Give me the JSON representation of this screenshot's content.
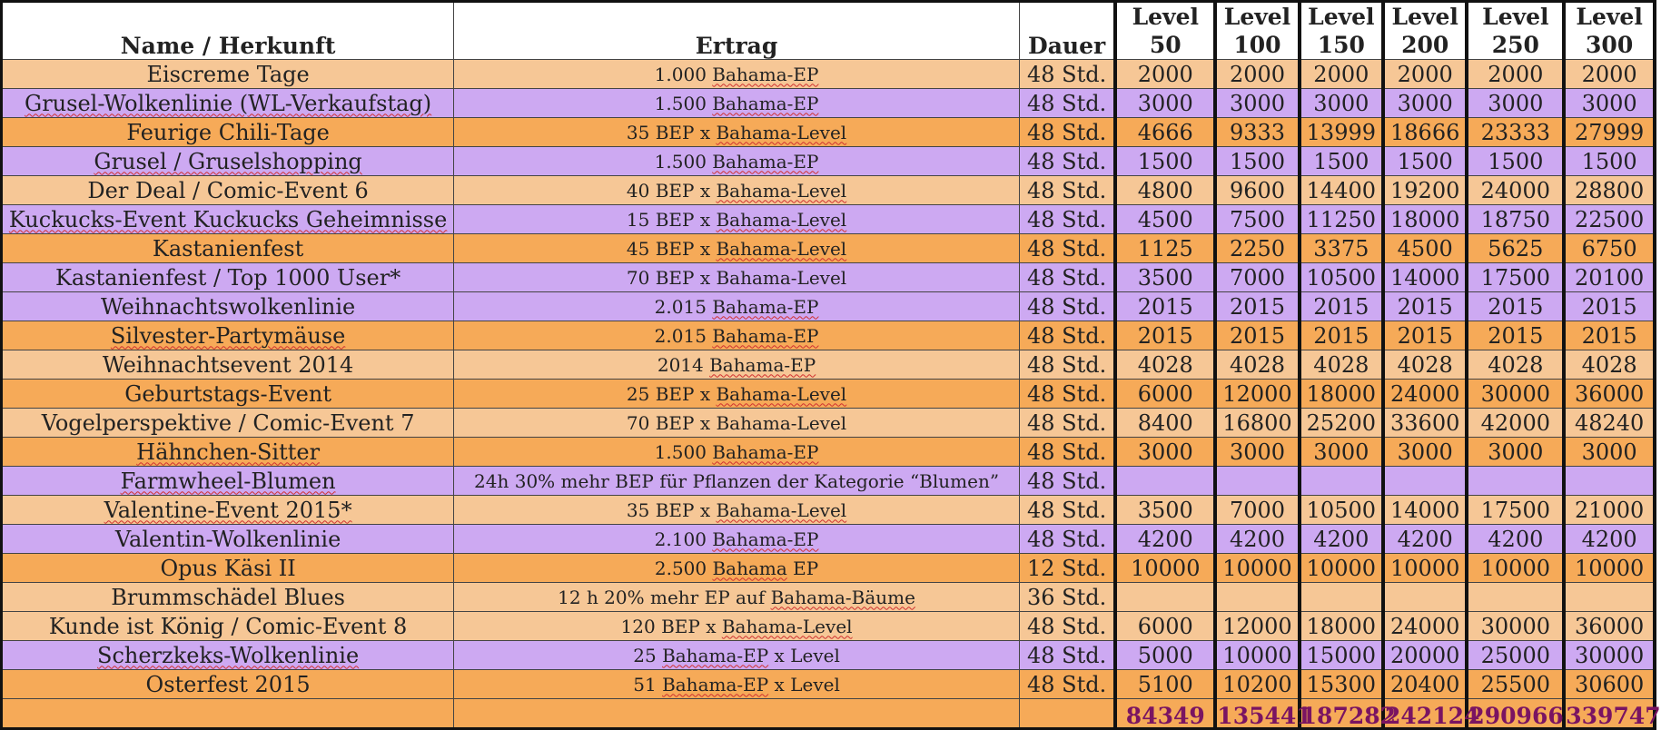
{
  "colors": {
    "light_orange": "#f6c796",
    "orange": "#f6aa58",
    "purple": "#cda9f2",
    "total_text": "#7a1462"
  },
  "header": {
    "name": "Name / Herkunft",
    "ertrag": "Ertrag",
    "dauer": "Dauer",
    "levels": [
      {
        "top": "Level",
        "bottom": "50"
      },
      {
        "top": "Level",
        "bottom": "100"
      },
      {
        "top": "Level",
        "bottom": "150"
      },
      {
        "top": "Level",
        "bottom": "200"
      },
      {
        "top": "Level",
        "bottom": "250"
      },
      {
        "top": "Level",
        "bottom": "300"
      }
    ]
  },
  "rows": [
    {
      "color": "light_orange",
      "name": "Eiscreme Tage",
      "ertrag_pre": "1.000 ",
      "ertrag_sq": "Bahama-EP",
      "ertrag_post": "",
      "dauer": "48 Std.",
      "values": [
        "2000",
        "2000",
        "2000",
        "2000",
        "2000",
        "2000"
      ]
    },
    {
      "color": "purple",
      "name": "Grusel-Wolkenlinie (WL-Verkaufstag)",
      "ertrag_pre": "1.500 ",
      "ertrag_sq": "Bahama-EP",
      "ertrag_post": "",
      "dauer": "48 Std.",
      "values": [
        "3000",
        "3000",
        "3000",
        "3000",
        "3000",
        "3000"
      ]
    },
    {
      "color": "orange",
      "name": "Feurige Chili-Tage",
      "ertrag_pre": "35 BEP x ",
      "ertrag_sq": "Bahama-Level",
      "ertrag_post": "",
      "dauer": "48 Std.",
      "values": [
        "4666",
        "9333",
        "13999",
        "18666",
        "23333",
        "27999"
      ]
    },
    {
      "color": "purple",
      "name": "Grusel / Gruselshopping",
      "ertrag_pre": "1.500 ",
      "ertrag_sq": "Bahama-EP",
      "ertrag_post": "",
      "dauer": "48 Std.",
      "values": [
        "1500",
        "1500",
        "1500",
        "1500",
        "1500",
        "1500"
      ]
    },
    {
      "color": "light_orange",
      "name": "Der Deal / Comic-Event 6",
      "ertrag_pre": "40 BEP x ",
      "ertrag_sq": "Bahama-Level",
      "ertrag_post": "",
      "dauer": "48 Std.",
      "values": [
        "4800",
        "9600",
        "14400",
        "19200",
        "24000",
        "28800"
      ]
    },
    {
      "color": "purple",
      "name": "Kuckucks-Event Kuckucks Geheimnisse",
      "ertrag_pre": "15 BEP x ",
      "ertrag_sq": "Bahama-Level",
      "ertrag_post": "",
      "dauer": "48 Std.",
      "values": [
        "4500",
        "7500",
        "11250",
        "18000",
        "18750",
        "22500"
      ]
    },
    {
      "color": "orange",
      "name": "Kastanienfest",
      "ertrag_pre": "45 BEP x ",
      "ertrag_sq": "Bahama-Level",
      "ertrag_post": "",
      "dauer": "48 Std.",
      "values": [
        "1125",
        "2250",
        "3375",
        "4500",
        "5625",
        "6750"
      ]
    },
    {
      "color": "purple",
      "name": "Kastanienfest / Top 1000 User*",
      "ertrag_pre": "70 BEP x Bahama-Level",
      "ertrag_sq": "",
      "ertrag_post": "",
      "dauer": "48 Std.",
      "values": [
        "3500",
        "7000",
        "10500",
        "14000",
        "17500",
        "20100"
      ]
    },
    {
      "color": "purple",
      "name": "Weihnachtswolkenlinie",
      "ertrag_pre": "2.015 ",
      "ertrag_sq": "Bahama-EP",
      "ertrag_post": "",
      "dauer": "48 Std.",
      "values": [
        "2015",
        "2015",
        "2015",
        "2015",
        "2015",
        "2015"
      ]
    },
    {
      "color": "orange",
      "name": "Silvester-Partymäuse",
      "ertrag_pre": "2.015 ",
      "ertrag_sq": "Bahama-EP",
      "ertrag_post": "",
      "dauer": "48 Std.",
      "values": [
        "2015",
        "2015",
        "2015",
        "2015",
        "2015",
        "2015"
      ]
    },
    {
      "color": "light_orange",
      "name": "Weihnachtsevent 2014",
      "ertrag_pre": "2014 ",
      "ertrag_sq": "Bahama-EP",
      "ertrag_post": "",
      "dauer": "48 Std.",
      "values": [
        "4028",
        "4028",
        "4028",
        "4028",
        "4028",
        "4028"
      ]
    },
    {
      "color": "orange",
      "name": "Geburtstags-Event",
      "ertrag_pre": "25 BEP x ",
      "ertrag_sq": "Bahama-Level",
      "ertrag_post": "",
      "dauer": "48 Std.",
      "values": [
        "6000",
        "12000",
        "18000",
        "24000",
        "30000",
        "36000"
      ]
    },
    {
      "color": "light_orange",
      "name": "Vogelperspektive / Comic-Event 7",
      "ertrag_pre": "70 BEP x Bahama-Level",
      "ertrag_sq": "",
      "ertrag_post": "",
      "dauer": "48 Std.",
      "values": [
        "8400",
        "16800",
        "25200",
        "33600",
        "42000",
        "48240"
      ]
    },
    {
      "color": "orange",
      "name": "Hähnchen-Sitter",
      "ertrag_pre": "1.500 ",
      "ertrag_sq": "Bahama-EP",
      "ertrag_post": "",
      "dauer": "48 Std.",
      "values": [
        "3000",
        "3000",
        "3000",
        "3000",
        "3000",
        "3000"
      ]
    },
    {
      "color": "purple",
      "name": "Farmwheel-Blumen",
      "ertrag_pre": "24h 30% mehr BEP für Pflanzen der Kategorie “Blumen”",
      "ertrag_sq": "",
      "ertrag_post": "",
      "dauer": "48 Std.",
      "values": [
        "",
        "",
        "",
        "",
        "",
        ""
      ]
    },
    {
      "color": "light_orange",
      "name": "Valentine-Event 2015*",
      "ertrag_pre": "35 BEP x ",
      "ertrag_sq": "Bahama-Level",
      "ertrag_post": "",
      "dauer": "48 Std.",
      "values": [
        "3500",
        "7000",
        "10500",
        "14000",
        "17500",
        "21000"
      ]
    },
    {
      "color": "purple",
      "name": "Valentin-Wolkenlinie",
      "ertrag_pre": "2.100 ",
      "ertrag_sq": "Bahama-EP",
      "ertrag_post": "",
      "dauer": "48 Std.",
      "values": [
        "4200",
        "4200",
        "4200",
        "4200",
        "4200",
        "4200"
      ]
    },
    {
      "color": "orange",
      "name": "Opus Käsi II",
      "ertrag_pre": "2.500 ",
      "ertrag_sq": "Bahama",
      "ertrag_post": " EP",
      "dauer": "12 Std.",
      "values": [
        "10000",
        "10000",
        "10000",
        "10000",
        "10000",
        "10000"
      ]
    },
    {
      "color": "light_orange",
      "name": "Brummschädel Blues",
      "ertrag_pre": "12 h 20% mehr EP auf ",
      "ertrag_sq": "Bahama-Bäume",
      "ertrag_post": "",
      "dauer": "36 Std.",
      "values": [
        "",
        "",
        "",
        "",
        "",
        ""
      ]
    },
    {
      "color": "light_orange",
      "name": "Kunde ist König / Comic-Event 8",
      "ertrag_pre": "120 BEP x ",
      "ertrag_sq": "Bahama-Level",
      "ertrag_post": "",
      "dauer": "48 Std.",
      "values": [
        "6000",
        "12000",
        "18000",
        "24000",
        "30000",
        "36000"
      ]
    },
    {
      "color": "purple",
      "name": "Scherzkeks-Wolkenlinie",
      "ertrag_pre": "25 ",
      "ertrag_sq": "Bahama-EP",
      "ertrag_post": " x Level",
      "dauer": "48 Std.",
      "values": [
        "5000",
        "10000",
        "15000",
        "20000",
        "25000",
        "30000"
      ]
    },
    {
      "color": "orange",
      "name": "Osterfest 2015",
      "ertrag_pre": "51 ",
      "ertrag_sq": "Bahama-EP",
      "ertrag_post": " x Level",
      "dauer": "48 Std.",
      "values": [
        "5100",
        "10200",
        "15300",
        "20400",
        "25500",
        "30600"
      ]
    }
  ],
  "totals": [
    "84349",
    "135441",
    "187282",
    "242124",
    "290966",
    "339747"
  ]
}
